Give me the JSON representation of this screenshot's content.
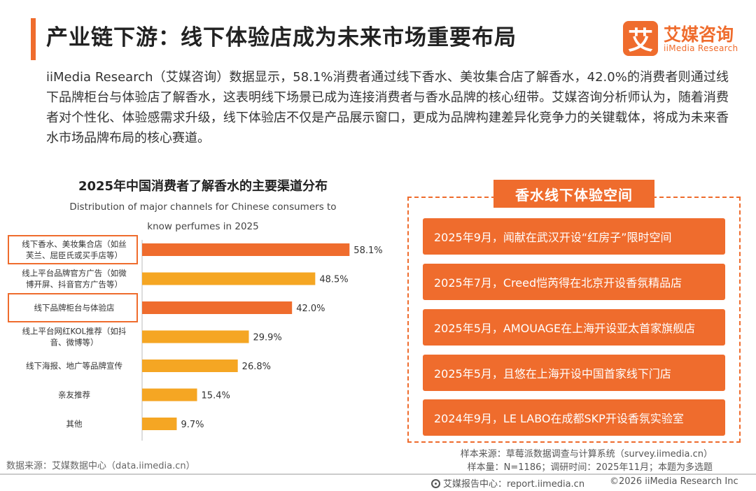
{
  "header": {
    "title": "产业链下游：线下体验店成为未来市场重要布局",
    "logo_mark": "艾",
    "logo_cn": "艾媒咨询",
    "logo_en": "iiMedia Research"
  },
  "intro": "iiMedia Research（艾媒咨询）数据显示，58.1%消费者通过线下香水、美妆集合店了解香水，42.0%的消费者则通过线下品牌柜台与体验店了解香水，这表明线下场景已成为连接消费者与香水品牌的核心纽带。艾媒咨询分析师认为，随着消费者对个性化、体验感需求升级，线下体验店不仅是产品展示窗口，更成为品牌构建差异化竞争力的关键载体，将成为未来香水市场品牌布局的核心赛道。",
  "chart_data": {
    "type": "bar",
    "orientation": "horizontal",
    "title": "2025年中国消费者了解香水的主要渠道分布",
    "subtitle": "Distribution of major channels for Chinese consumers to know perfumes in 2025",
    "categories": [
      [
        "线下香水、美妆集合店（如丝",
        "芙兰、屈臣氏或买手店等）"
      ],
      [
        "线上平台品牌官方广告（如微",
        "博开屏、抖音官方广告等）"
      ],
      [
        "线下品牌柜台与体验店"
      ],
      [
        "线上平台网红KOL推荐（如抖",
        "音、微博等）"
      ],
      [
        "线下海报、地广等品牌宣传"
      ],
      [
        "亲友推荐"
      ],
      [
        "其他"
      ]
    ],
    "values": [
      58.1,
      48.5,
      42.0,
      29.9,
      26.8,
      15.4,
      9.7
    ],
    "value_labels": [
      "58.1%",
      "48.5%",
      "42.0%",
      "29.9%",
      "26.8%",
      "15.4%",
      "9.7%"
    ],
    "highlighted": [
      true,
      false,
      true,
      false,
      false,
      false,
      false
    ],
    "colors": {
      "highlight": "#ef6c2d",
      "normal": "#f5a623"
    },
    "unit": "%",
    "xlim": [
      0,
      100
    ]
  },
  "experience": {
    "title": "香水线下体验空间",
    "events": [
      "2025年9月，闻献在武汉开设“红房子”限时空间",
      "2025年7月，Creed恺芮得在北京开设香氛精品店",
      "2025年5月，AMOUAGE在上海开设亚太首家旗舰店",
      "2025年5月，且悠在上海开设中国首家线下门店",
      "2024年9月，LE LABO在成都SKP开设香氛实验室"
    ]
  },
  "notes": {
    "sample_source": "样本来源：草莓派数据调查与计算系统（survey.iimedia.cn）",
    "sample_size": "样本量：N=1186；调研时间：2025年11月；本题为多选题",
    "data_source": "数据来源：艾媒数据中心（data.iimedia.cn）"
  },
  "footer": {
    "report_center": "艾媒报告中心：report.iimedia.cn",
    "copyright": "©2026  iiMedia Research  Inc"
  },
  "colors": {
    "accent": "#ef6c2d"
  }
}
